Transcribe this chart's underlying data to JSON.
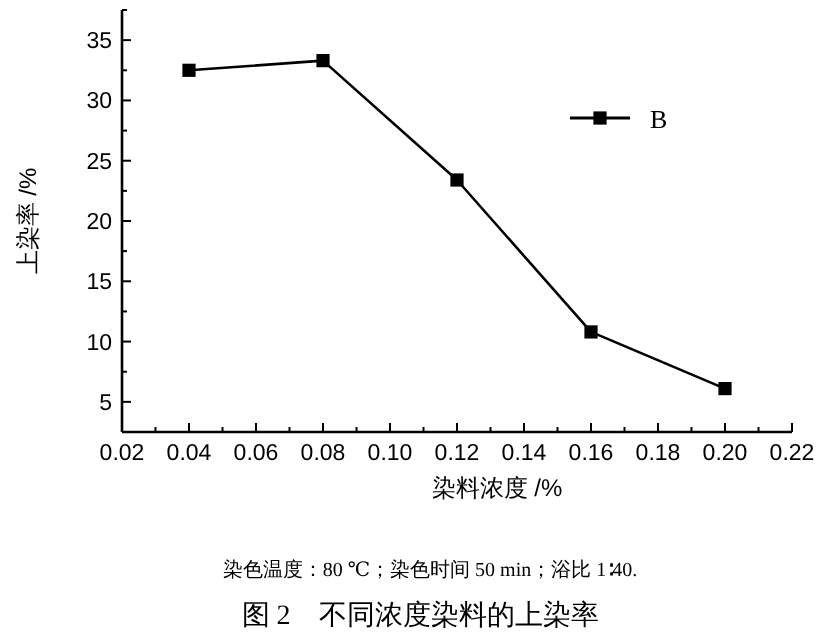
{
  "chart_data": {
    "type": "line",
    "title": "图 2　不同浓度染料的上染率",
    "xlabel": "染料浓度 /%",
    "ylabel": "上染率 /%",
    "annotations": [
      "染色温度：80 ℃；染色时间 50 min；浴比 1∶40."
    ],
    "x": [
      0.04,
      0.08,
      0.12,
      0.16,
      0.2
    ],
    "series": [
      {
        "name": "B",
        "color": "#000000",
        "values": [
          32.5,
          33.3,
          23.4,
          10.8,
          6.1
        ]
      }
    ],
    "xlim": [
      0.02,
      0.22
    ],
    "xticks": [
      0.02,
      {
        "value": 0.03,
        "label": null
      },
      0.04,
      {
        "value": 0.05,
        "label": null
      },
      0.06,
      {
        "value": 0.07,
        "label": null
      },
      0.08,
      {
        "value": 0.09,
        "label": null
      },
      {
        "value": 0.1,
        "label": "0.10"
      },
      {
        "value": 0.11,
        "label": null
      },
      0.12,
      {
        "value": 0.13,
        "label": null
      },
      0.14,
      {
        "value": 0.15,
        "label": null
      },
      0.16,
      {
        "value": 0.17,
        "label": null
      },
      0.18,
      {
        "value": 0.19,
        "label": null
      },
      {
        "value": 0.2,
        "label": "0.20"
      },
      {
        "value": 0.21,
        "label": null
      },
      0.22
    ],
    "ylim": [
      2.5,
      37.5
    ],
    "yticks": [
      {
        "value": 2.5,
        "label": null
      },
      5,
      {
        "value": 7.5,
        "label": null
      },
      10,
      {
        "value": 12.5,
        "label": null
      },
      15,
      {
        "value": 17.5,
        "label": null
      },
      20,
      {
        "value": 22.5,
        "label": null
      },
      25,
      {
        "value": 27.5,
        "label": null
      },
      30,
      {
        "value": 32.5,
        "label": null
      },
      35,
      {
        "value": 37.5,
        "label": null
      }
    ],
    "marker": "square",
    "line_style": "solid",
    "legend": "top right",
    "grid": false
  }
}
